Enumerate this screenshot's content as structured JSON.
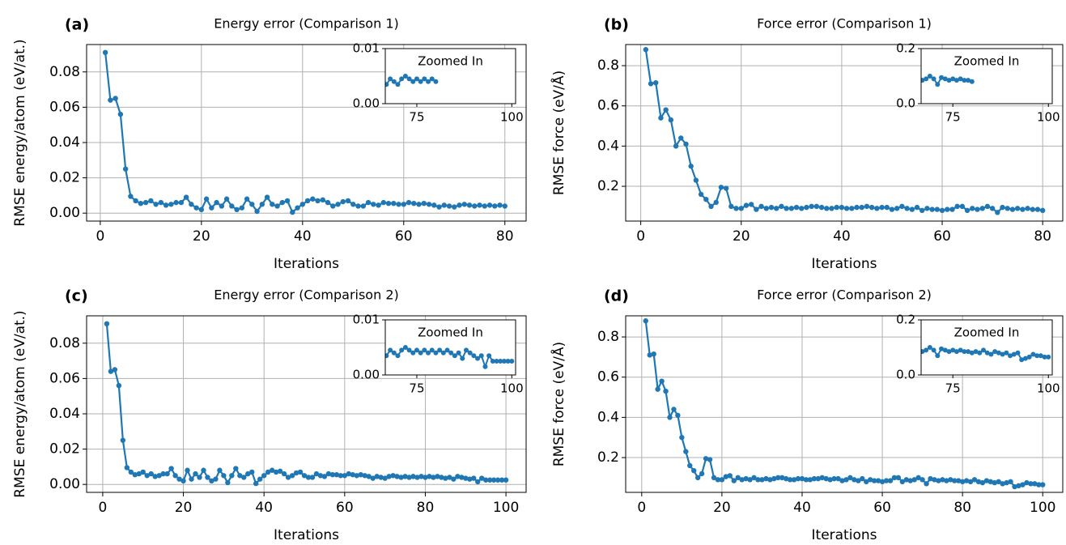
{
  "chart_data": [
    {
      "type": "line",
      "panel_label": "(a)",
      "title": "Energy error (Comparison 1)",
      "xlabel": "Iterations",
      "ylabel": "RMSE energy/atom (eV/at.)",
      "color": "#1f77b4",
      "grid": true,
      "x": [
        1,
        2,
        3,
        4,
        5,
        6,
        7,
        8,
        9,
        10,
        11,
        12,
        13,
        14,
        15,
        16,
        17,
        18,
        19,
        20,
        21,
        22,
        23,
        24,
        25,
        26,
        27,
        28,
        29,
        30,
        31,
        32,
        33,
        34,
        35,
        36,
        37,
        38,
        39,
        40,
        41,
        42,
        43,
        44,
        45,
        46,
        47,
        48,
        49,
        50,
        51,
        52,
        53,
        54,
        55,
        56,
        57,
        58,
        59,
        60,
        61,
        62,
        63,
        64,
        65,
        66,
        67,
        68,
        69,
        70,
        71,
        72,
        73,
        74,
        75,
        76,
        77,
        78,
        79,
        80
      ],
      "values": [
        0.091,
        0.064,
        0.065,
        0.056,
        0.025,
        0.0095,
        0.007,
        0.0055,
        0.006,
        0.007,
        0.005,
        0.006,
        0.0045,
        0.005,
        0.006,
        0.006,
        0.009,
        0.005,
        0.003,
        0.002,
        0.008,
        0.003,
        0.006,
        0.004,
        0.008,
        0.004,
        0.002,
        0.003,
        0.008,
        0.005,
        0.001,
        0.005,
        0.009,
        0.005,
        0.004,
        0.006,
        0.007,
        0.0005,
        0.003,
        0.005,
        0.007,
        0.008,
        0.007,
        0.0075,
        0.006,
        0.004,
        0.005,
        0.0065,
        0.007,
        0.005,
        0.004,
        0.004,
        0.006,
        0.005,
        0.0045,
        0.006,
        0.0055,
        0.0055,
        0.005,
        0.005,
        0.006,
        0.0055,
        0.005,
        0.0055,
        0.005,
        0.0045,
        0.0035,
        0.0045,
        0.004,
        0.0035,
        0.0045,
        0.005,
        0.0045,
        0.004,
        0.0045,
        0.004,
        0.0045,
        0.004,
        0.0045,
        0.004
      ],
      "xlim": [
        -2.7,
        84.2
      ],
      "xticks": [
        0,
        20,
        40,
        60,
        80
      ],
      "ylim": [
        -0.0045,
        0.0955
      ],
      "yticks": [
        {
          "value": 0,
          "label": "0.00"
        },
        0.02,
        0.04,
        0.06,
        0.08
      ],
      "inset": {
        "title": "Zoomed In",
        "xlim": [
          66.7,
          101
        ],
        "xticks": [
          75,
          100
        ],
        "ylim": [
          0,
          0.01
        ],
        "yticks": [
          {
            "value": 0,
            "label": "0.00"
          },
          0.01
        ]
      }
    },
    {
      "type": "line",
      "panel_label": "(b)",
      "title": "Force error (Comparison 1)",
      "xlabel": "Iterations",
      "ylabel": "RMSE force (eV/Å)",
      "color": "#1f77b4",
      "grid": true,
      "x": [
        1,
        2,
        3,
        4,
        5,
        6,
        7,
        8,
        9,
        10,
        11,
        12,
        13,
        14,
        15,
        16,
        17,
        18,
        19,
        20,
        21,
        22,
        23,
        24,
        25,
        26,
        27,
        28,
        29,
        30,
        31,
        32,
        33,
        34,
        35,
        36,
        37,
        38,
        39,
        40,
        41,
        42,
        43,
        44,
        45,
        46,
        47,
        48,
        49,
        50,
        51,
        52,
        53,
        54,
        55,
        56,
        57,
        58,
        59,
        60,
        61,
        62,
        63,
        64,
        65,
        66,
        67,
        68,
        69,
        70,
        71,
        72,
        73,
        74,
        75,
        76,
        77,
        78,
        79,
        80
      ],
      "values": [
        0.88,
        0.71,
        0.715,
        0.54,
        0.58,
        0.53,
        0.4,
        0.44,
        0.41,
        0.3,
        0.23,
        0.16,
        0.135,
        0.1,
        0.12,
        0.195,
        0.19,
        0.1,
        0.09,
        0.09,
        0.105,
        0.11,
        0.085,
        0.1,
        0.09,
        0.095,
        0.09,
        0.1,
        0.09,
        0.09,
        0.095,
        0.09,
        0.095,
        0.1,
        0.1,
        0.095,
        0.09,
        0.09,
        0.095,
        0.095,
        0.09,
        0.09,
        0.095,
        0.095,
        0.1,
        0.095,
        0.09,
        0.095,
        0.095,
        0.085,
        0.09,
        0.1,
        0.09,
        0.085,
        0.095,
        0.08,
        0.09,
        0.085,
        0.085,
        0.08,
        0.085,
        0.085,
        0.1,
        0.1,
        0.08,
        0.09,
        0.085,
        0.09,
        0.1,
        0.09,
        0.07,
        0.095,
        0.09,
        0.085,
        0.09,
        0.085,
        0.09,
        0.085,
        0.085,
        0.08
      ],
      "xlim": [
        -3,
        84
      ],
      "xticks": [
        0,
        20,
        40,
        60,
        80
      ],
      "ylim": [
        0.027,
        0.905
      ],
      "yticks": [
        0.2,
        0.4,
        0.6,
        0.8
      ],
      "inset": {
        "title": "Zoomed In",
        "xlim": [
          66.7,
          101
        ],
        "xticks": [
          75,
          100
        ],
        "ylim": [
          0,
          0.2
        ],
        "yticks": [
          {
            "value": 0,
            "label": "0.0"
          },
          0.2
        ]
      }
    },
    {
      "type": "line",
      "panel_label": "(c)",
      "title": "Energy error (Comparison 2)",
      "xlabel": "Iterations",
      "ylabel": "RMSE energy/atom (eV/at.)",
      "color": "#1f77b4",
      "grid": true,
      "x": [
        1,
        2,
        3,
        4,
        5,
        6,
        7,
        8,
        9,
        10,
        11,
        12,
        13,
        14,
        15,
        16,
        17,
        18,
        19,
        20,
        21,
        22,
        23,
        24,
        25,
        26,
        27,
        28,
        29,
        30,
        31,
        32,
        33,
        34,
        35,
        36,
        37,
        38,
        39,
        40,
        41,
        42,
        43,
        44,
        45,
        46,
        47,
        48,
        49,
        50,
        51,
        52,
        53,
        54,
        55,
        56,
        57,
        58,
        59,
        60,
        61,
        62,
        63,
        64,
        65,
        66,
        67,
        68,
        69,
        70,
        71,
        72,
        73,
        74,
        75,
        76,
        77,
        78,
        79,
        80,
        81,
        82,
        83,
        84,
        85,
        86,
        87,
        88,
        89,
        90,
        91,
        92,
        93,
        94,
        95,
        96,
        97,
        98,
        99,
        100
      ],
      "values": [
        0.091,
        0.064,
        0.065,
        0.056,
        0.025,
        0.0095,
        0.007,
        0.0055,
        0.006,
        0.007,
        0.005,
        0.006,
        0.0045,
        0.005,
        0.006,
        0.006,
        0.009,
        0.005,
        0.003,
        0.002,
        0.008,
        0.003,
        0.006,
        0.004,
        0.008,
        0.004,
        0.002,
        0.003,
        0.008,
        0.005,
        0.001,
        0.005,
        0.009,
        0.005,
        0.004,
        0.006,
        0.007,
        0.0005,
        0.003,
        0.005,
        0.007,
        0.008,
        0.007,
        0.0075,
        0.006,
        0.004,
        0.005,
        0.0065,
        0.007,
        0.005,
        0.004,
        0.004,
        0.006,
        0.005,
        0.0045,
        0.006,
        0.0055,
        0.0055,
        0.005,
        0.005,
        0.006,
        0.0055,
        0.005,
        0.0055,
        0.005,
        0.0045,
        0.0035,
        0.0045,
        0.004,
        0.0035,
        0.0045,
        0.005,
        0.0045,
        0.004,
        0.0045,
        0.004,
        0.0045,
        0.004,
        0.0045,
        0.004,
        0.0045,
        0.004,
        0.0045,
        0.004,
        0.0035,
        0.004,
        0.003,
        0.0045,
        0.004,
        0.0035,
        0.003,
        0.0035,
        0.0015,
        0.0035,
        0.0025,
        0.0025,
        0.0025,
        0.0025,
        0.0025,
        0.0025
      ],
      "xlim": [
        -4,
        105
      ],
      "xticks": [
        0,
        20,
        40,
        60,
        80,
        100
      ],
      "ylim": [
        -0.0045,
        0.0955
      ],
      "yticks": [
        {
          "value": 0,
          "label": "0.00"
        },
        0.02,
        0.04,
        0.06,
        0.08
      ],
      "inset": {
        "title": "Zoomed In",
        "xlim": [
          66.7,
          101
        ],
        "xticks": [
          75,
          100
        ],
        "ylim": [
          0,
          0.01
        ],
        "yticks": [
          {
            "value": 0,
            "label": "0.00"
          },
          0.01
        ]
      }
    },
    {
      "type": "line",
      "panel_label": "(d)",
      "title": "Force error (Comparison 2)",
      "xlabel": "Iterations",
      "ylabel": "RMSE force (eV/Å)",
      "color": "#1f77b4",
      "grid": true,
      "x": [
        1,
        2,
        3,
        4,
        5,
        6,
        7,
        8,
        9,
        10,
        11,
        12,
        13,
        14,
        15,
        16,
        17,
        18,
        19,
        20,
        21,
        22,
        23,
        24,
        25,
        26,
        27,
        28,
        29,
        30,
        31,
        32,
        33,
        34,
        35,
        36,
        37,
        38,
        39,
        40,
        41,
        42,
        43,
        44,
        45,
        46,
        47,
        48,
        49,
        50,
        51,
        52,
        53,
        54,
        55,
        56,
        57,
        58,
        59,
        60,
        61,
        62,
        63,
        64,
        65,
        66,
        67,
        68,
        69,
        70,
        71,
        72,
        73,
        74,
        75,
        76,
        77,
        78,
        79,
        80,
        81,
        82,
        83,
        84,
        85,
        86,
        87,
        88,
        89,
        90,
        91,
        92,
        93,
        94,
        95,
        96,
        97,
        98,
        99,
        100
      ],
      "values": [
        0.88,
        0.71,
        0.715,
        0.54,
        0.58,
        0.53,
        0.4,
        0.44,
        0.41,
        0.3,
        0.23,
        0.16,
        0.135,
        0.1,
        0.12,
        0.195,
        0.19,
        0.1,
        0.09,
        0.09,
        0.105,
        0.11,
        0.085,
        0.1,
        0.09,
        0.095,
        0.09,
        0.1,
        0.09,
        0.09,
        0.095,
        0.09,
        0.095,
        0.1,
        0.1,
        0.095,
        0.09,
        0.09,
        0.095,
        0.095,
        0.09,
        0.09,
        0.095,
        0.095,
        0.1,
        0.095,
        0.09,
        0.095,
        0.095,
        0.085,
        0.09,
        0.1,
        0.09,
        0.085,
        0.095,
        0.08,
        0.09,
        0.085,
        0.085,
        0.08,
        0.085,
        0.085,
        0.1,
        0.1,
        0.08,
        0.09,
        0.085,
        0.09,
        0.1,
        0.09,
        0.07,
        0.095,
        0.09,
        0.085,
        0.09,
        0.085,
        0.09,
        0.085,
        0.085,
        0.08,
        0.085,
        0.08,
        0.09,
        0.08,
        0.075,
        0.085,
        0.08,
        0.075,
        0.08,
        0.07,
        0.075,
        0.08,
        0.055,
        0.06,
        0.065,
        0.075,
        0.07,
        0.07,
        0.065,
        0.065
      ],
      "xlim": [
        -4,
        105
      ],
      "xticks": [
        0,
        20,
        40,
        60,
        80,
        100
      ],
      "ylim": [
        0.027,
        0.905
      ],
      "yticks": [
        0.2,
        0.4,
        0.6,
        0.8
      ],
      "inset": {
        "title": "Zoomed In",
        "xlim": [
          66.7,
          101
        ],
        "xticks": [
          75,
          100
        ],
        "ylim": [
          0,
          0.2
        ],
        "yticks": [
          {
            "value": 0,
            "label": "0.0"
          },
          0.2
        ]
      }
    }
  ]
}
